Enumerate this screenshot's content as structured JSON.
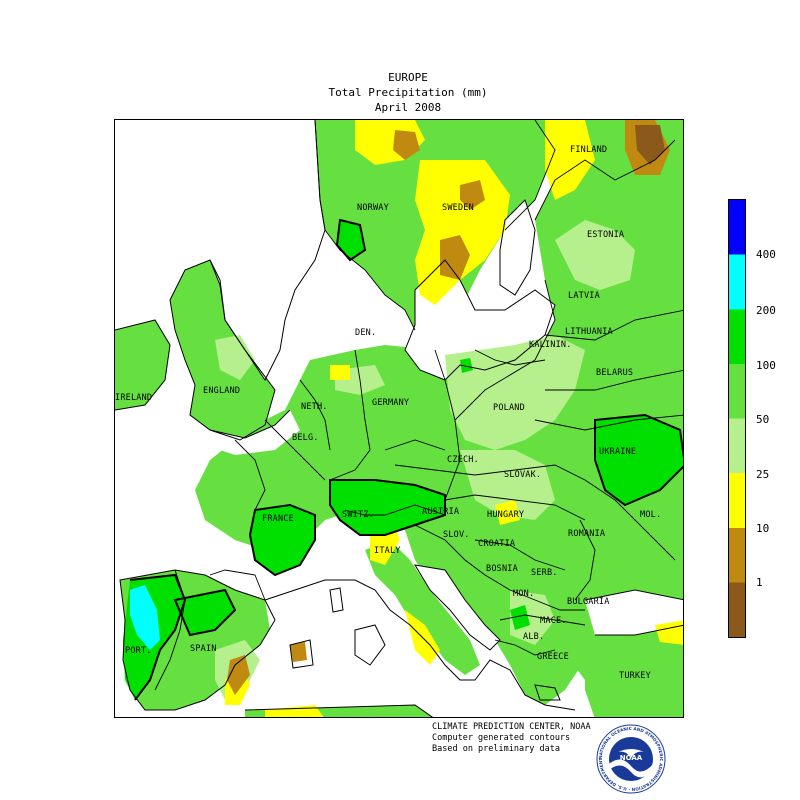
{
  "header": {
    "title": "EUROPE",
    "subtitle": "Total Precipitation (mm)",
    "period": "April 2008"
  },
  "legend": {
    "thresholds": [
      {
        "label": "400",
        "color": "#0000ff"
      },
      {
        "label": "200",
        "color": "#00ffff"
      },
      {
        "label": "100",
        "color": "#00e000"
      },
      {
        "label": "50",
        "color": "#66e040"
      },
      {
        "label": "25",
        "color": "#b5f08c"
      },
      {
        "label": "10",
        "color": "#ffff00"
      },
      {
        "label": "1",
        "color": "#c08a10"
      }
    ],
    "bottom_color": "#8b5a1b",
    "colors": [
      "#0000ff",
      "#00ffff",
      "#00e000",
      "#66e040",
      "#b5f08c",
      "#ffff00",
      "#c08a10",
      "#8b5a1b"
    ]
  },
  "countries": [
    {
      "label": "FINLAND"
    },
    {
      "label": "NORWAY"
    },
    {
      "label": "SWEDEN"
    },
    {
      "label": "ESTONIA"
    },
    {
      "label": "LATVIA"
    },
    {
      "label": "LITHUANIA"
    },
    {
      "label": "DEN."
    },
    {
      "label": "KALININ."
    },
    {
      "label": "BELARUS"
    },
    {
      "label": "ENGLAND"
    },
    {
      "label": "IRELAND"
    },
    {
      "label": "NETH."
    },
    {
      "label": "GERMANY"
    },
    {
      "label": "POLAND"
    },
    {
      "label": "BELG."
    },
    {
      "label": "CZECH."
    },
    {
      "label": "UKRAINE"
    },
    {
      "label": "SLOVAK."
    },
    {
      "label": "FRANCE"
    },
    {
      "label": "SWITZ."
    },
    {
      "label": "AUSTRIA"
    },
    {
      "label": "HUNGARY"
    },
    {
      "label": "MOL."
    },
    {
      "label": "ROMANIA"
    },
    {
      "label": "SLOV."
    },
    {
      "label": "CROATIA"
    },
    {
      "label": "ITALY"
    },
    {
      "label": "BOSNIA"
    },
    {
      "label": "SERB."
    },
    {
      "label": "MON."
    },
    {
      "label": "BULGARIA"
    },
    {
      "label": "PORT."
    },
    {
      "label": "SPAIN"
    },
    {
      "label": "ALB."
    },
    {
      "label": "MACE."
    },
    {
      "label": "GREECE"
    },
    {
      "label": "TURKEY"
    }
  ],
  "credits": {
    "line1": "CLIMATE PREDICTION CENTER, NOAA",
    "line2": "Computer generated contours",
    "line3": "Based on preliminary data"
  },
  "logo": {
    "text": "NOAA",
    "ring_text": "NATIONAL OCEANIC AND ATMOSPHERIC ADMINISTRATION · U.S. DEPARTMENT OF COMMERCE"
  }
}
